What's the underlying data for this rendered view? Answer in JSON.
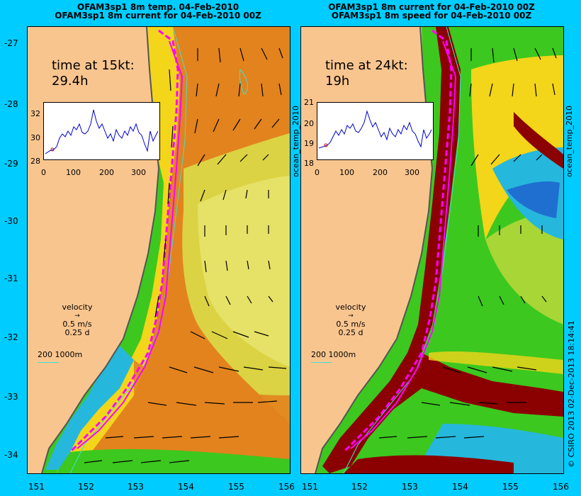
{
  "left_panel": {
    "title_line1": "OFAM3sp1 8m temp. 04-Feb-2010",
    "title_line2": "OFAM3sp1 8m current for 04-Feb-2010 00Z",
    "time_label_line1": "time at 15kt:",
    "time_label_line2": "29.4h",
    "inset": {
      "y_ticks": [
        "32",
        "30",
        "28"
      ],
      "x_ticks": [
        "0",
        "100",
        "200",
        "300"
      ]
    },
    "side_label": "ocean_temp_2010"
  },
  "right_panel": {
    "title_line1": "OFAM3sp1 8m current for 04-Feb-2010 00Z",
    "title_line2": "OFAM3sp1 8m speed for 04-Feb-2010 00Z",
    "time_label_line1": "time at 24kt:",
    "time_label_line2": "19h",
    "inset": {
      "y_ticks": [
        "21",
        "20",
        "19",
        "18"
      ],
      "x_ticks": [
        "0",
        "100",
        "200",
        "300"
      ]
    },
    "side_label": "ocean_temp_2010"
  },
  "legend": {
    "velocity": "velocity",
    "speed": "0.5 m/s",
    "duration": "0.25 d",
    "depth_scale": "200  1000m"
  },
  "y_axis_ticks": [
    "-27",
    "-28",
    "-29",
    "-30",
    "-31",
    "-32",
    "-33",
    "-34"
  ],
  "x_axis_ticks": [
    "151",
    "152",
    "153",
    "154",
    "155",
    "156"
  ],
  "copyright": "© CSIRO 2013   02-Dec-2013 18:14:41",
  "colors": {
    "background": "#00ccff",
    "land": "#f9c58f",
    "track": "#ff00ff",
    "warm": "#e2831e",
    "yellow": "#f3d51a",
    "green": "#3cc81e",
    "cyan": "#26b7dc",
    "darkred": "#8b0000"
  }
}
